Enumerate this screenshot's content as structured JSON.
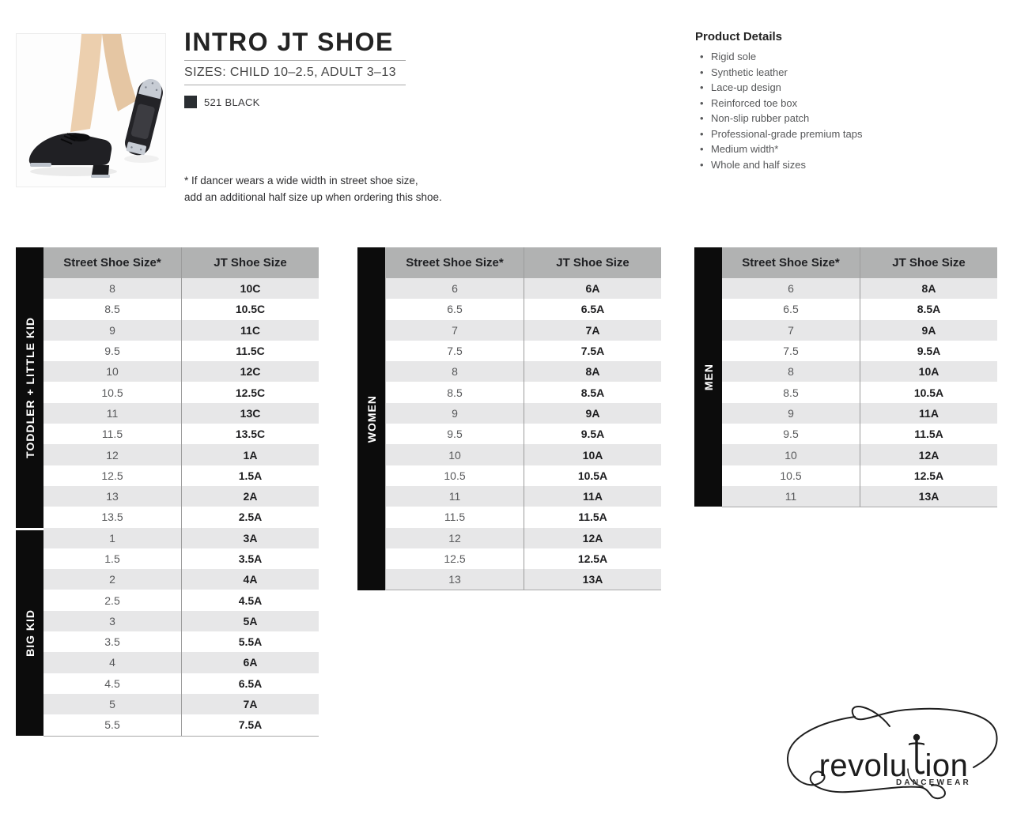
{
  "header": {
    "title": "INTRO JT SHOE",
    "subtitle": "SIZES: CHILD 10–2.5, ADULT 3–13",
    "color_swatch": {
      "code": "521 BLACK",
      "hex": "#2a2e32"
    },
    "footnote_line1": "* If dancer wears a wide width in street shoe size,",
    "footnote_line2": "add an additional half size up when ordering this shoe."
  },
  "product_details": {
    "title": "Product Details",
    "items": [
      "Rigid sole",
      "Synthetic leather",
      "Lace-up design",
      "Reinforced toe box",
      "Non-slip rubber patch",
      "Professional-grade premium taps",
      "Medium width*",
      "Whole and half sizes"
    ]
  },
  "size_tables": [
    {
      "sections": [
        {
          "label": "TODDLER + LITTLE KID",
          "row_count": 12
        },
        {
          "label": "BIG KID",
          "row_count": 10
        }
      ],
      "columns": [
        "Street Shoe Size*",
        "JT Shoe Size"
      ],
      "rows": [
        [
          "8",
          "10C"
        ],
        [
          "8.5",
          "10.5C"
        ],
        [
          "9",
          "11C"
        ],
        [
          "9.5",
          "11.5C"
        ],
        [
          "10",
          "12C"
        ],
        [
          "10.5",
          "12.5C"
        ],
        [
          "11",
          "13C"
        ],
        [
          "11.5",
          "13.5C"
        ],
        [
          "12",
          "1A"
        ],
        [
          "12.5",
          "1.5A"
        ],
        [
          "13",
          "2A"
        ],
        [
          "13.5",
          "2.5A"
        ],
        [
          "1",
          "3A"
        ],
        [
          "1.5",
          "3.5A"
        ],
        [
          "2",
          "4A"
        ],
        [
          "2.5",
          "4.5A"
        ],
        [
          "3",
          "5A"
        ],
        [
          "3.5",
          "5.5A"
        ],
        [
          "4",
          "6A"
        ],
        [
          "4.5",
          "6.5A"
        ],
        [
          "5",
          "7A"
        ],
        [
          "5.5",
          "7.5A"
        ]
      ]
    },
    {
      "sections": [
        {
          "label": "WOMEN",
          "row_count": 15
        }
      ],
      "columns": [
        "Street Shoe Size*",
        "JT Shoe Size"
      ],
      "rows": [
        [
          "6",
          "6A"
        ],
        [
          "6.5",
          "6.5A"
        ],
        [
          "7",
          "7A"
        ],
        [
          "7.5",
          "7.5A"
        ],
        [
          "8",
          "8A"
        ],
        [
          "8.5",
          "8.5A"
        ],
        [
          "9",
          "9A"
        ],
        [
          "9.5",
          "9.5A"
        ],
        [
          "10",
          "10A"
        ],
        [
          "10.5",
          "10.5A"
        ],
        [
          "11",
          "11A"
        ],
        [
          "11.5",
          "11.5A"
        ],
        [
          "12",
          "12A"
        ],
        [
          "12.5",
          "12.5A"
        ],
        [
          "13",
          "13A"
        ]
      ]
    },
    {
      "sections": [
        {
          "label": "MEN",
          "row_count": 11
        }
      ],
      "columns": [
        "Street Shoe Size*",
        "JT Shoe Size"
      ],
      "rows": [
        [
          "6",
          "8A"
        ],
        [
          "6.5",
          "8.5A"
        ],
        [
          "7",
          "9A"
        ],
        [
          "7.5",
          "9.5A"
        ],
        [
          "8",
          "10A"
        ],
        [
          "8.5",
          "10.5A"
        ],
        [
          "9",
          "11A"
        ],
        [
          "9.5",
          "11.5A"
        ],
        [
          "10",
          "12A"
        ],
        [
          "10.5",
          "12.5A"
        ],
        [
          "11",
          "13A"
        ]
      ]
    }
  ],
  "logo": {
    "brand": "revolution",
    "brand_left": "revolu",
    "brand_right": "ion",
    "tagline": "DANCEWEAR"
  },
  "table_style": {
    "header_bg": "#b1b2b2",
    "stripe_bg": "#e7e7e8",
    "bar_bg": "#0c0c0c"
  }
}
